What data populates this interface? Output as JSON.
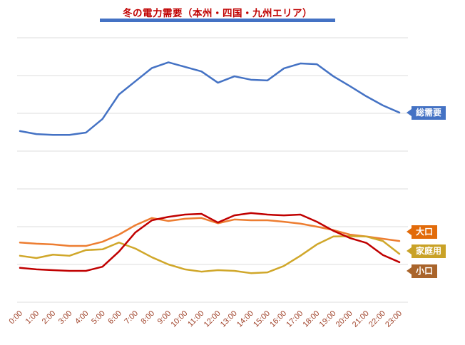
{
  "title": "冬の電力需要（本州・四国・九州エリア）",
  "colors": {
    "title": "#C00000",
    "title_underline": "#4472C4",
    "gridline": "#DCDCDC",
    "axis_label": "#A0432A",
    "labels": {
      "total_bg": "#4472C4",
      "large_bg": "#E26B0A",
      "household_bg": "#C9A227",
      "small_bg": "#A9642B"
    }
  },
  "series_labels": {
    "total": "総需要",
    "large": "大口",
    "household": "家庭用",
    "small": "小口"
  },
  "chart_data": {
    "type": "line",
    "title": "冬の電力需要（本州・四国・九州エリア）",
    "xlabel": "",
    "ylabel": "",
    "ylim": [
      0,
      70
    ],
    "grid": true,
    "gridline_step": 10,
    "legend_position": "right-callouts",
    "x": [
      "0:00",
      "1:00",
      "2:00",
      "3:00",
      "4:00",
      "5:00",
      "6:00",
      "7:00",
      "8:00",
      "9:00",
      "10:00",
      "11:00",
      "12:00",
      "13:00",
      "14:00",
      "15:00",
      "16:00",
      "17:00",
      "18:00",
      "19:00",
      "20:00",
      "21:00",
      "22:00",
      "23:00"
    ],
    "series": [
      {
        "name": "総需要",
        "color": "#4472C4",
        "values": [
          45.3,
          44.5,
          44.3,
          44.3,
          44.9,
          48.5,
          55.0,
          58.5,
          62.0,
          63.5,
          62.3,
          61.1,
          58.1,
          59.8,
          58.9,
          58.7,
          61.9,
          63.2,
          63.0,
          59.8,
          57.2,
          54.5,
          52.1,
          50.2
        ]
      },
      {
        "name": "大口",
        "color": "#ED7D31",
        "values": [
          15.8,
          15.5,
          15.3,
          14.9,
          14.9,
          16.0,
          17.9,
          20.4,
          22.3,
          21.5,
          22.1,
          22.3,
          20.9,
          21.9,
          21.7,
          21.7,
          21.3,
          20.8,
          20.0,
          19.1,
          17.9,
          17.4,
          16.8,
          16.2
        ]
      },
      {
        "name": "家庭用",
        "color": "#D0A72A",
        "values": [
          12.3,
          11.7,
          12.6,
          12.3,
          13.8,
          14.0,
          15.8,
          14.2,
          11.9,
          10.0,
          8.7,
          8.1,
          8.5,
          8.3,
          7.7,
          7.9,
          9.6,
          12.3,
          15.3,
          17.4,
          17.5,
          17.4,
          16.2,
          12.8
        ]
      },
      {
        "name": "小口",
        "color": "#C00000",
        "values": [
          9.1,
          8.7,
          8.5,
          8.3,
          8.3,
          9.4,
          13.4,
          18.5,
          21.7,
          22.6,
          23.2,
          23.4,
          21.1,
          23.0,
          23.6,
          23.2,
          23.0,
          23.2,
          21.3,
          18.9,
          17.0,
          15.7,
          12.5,
          10.6
        ]
      }
    ]
  }
}
